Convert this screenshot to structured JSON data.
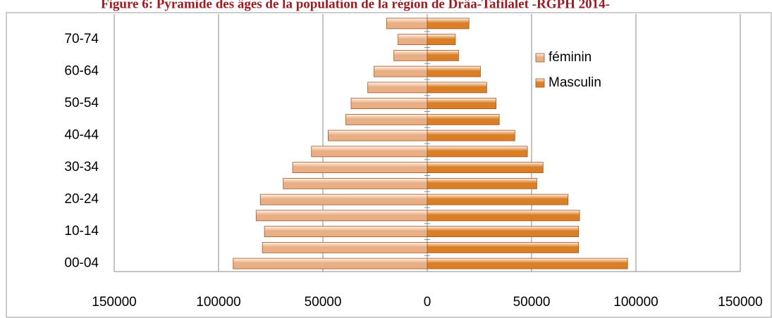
{
  "chart_data": {
    "type": "pyramid",
    "title": "Figure 6: Pyramide des âges de la population de la région de Drâa-Tafilalet -RGPH 2014-",
    "categories": [
      "00-04",
      null,
      "10-14",
      null,
      "20-24",
      null,
      "30-34",
      null,
      "40-44",
      null,
      "50-54",
      null,
      "60-64",
      null,
      "70-74",
      null
    ],
    "series": [
      {
        "name": "féminin",
        "color": "#e9ae84",
        "values": [
          -93000,
          -79000,
          -78000,
          -82000,
          -80000,
          -69000,
          -64500,
          -55500,
          -47500,
          -39000,
          -36500,
          -28500,
          -25500,
          -16000,
          -14000,
          -19500
        ]
      },
      {
        "name": "Masculin",
        "color": "#db7f26",
        "values": [
          96000,
          72500,
          72500,
          73000,
          67500,
          52500,
          55500,
          48000,
          42000,
          34500,
          33000,
          28500,
          25500,
          15000,
          13500,
          20000
        ]
      }
    ],
    "xlim": [
      -150000,
      150000
    ],
    "xticks": [
      {
        "value": -150000,
        "label": "150000"
      },
      {
        "value": -100000,
        "label": "100000"
      },
      {
        "value": -50000,
        "label": "50000"
      },
      0,
      50000,
      100000,
      150000
    ],
    "grid": true
  }
}
